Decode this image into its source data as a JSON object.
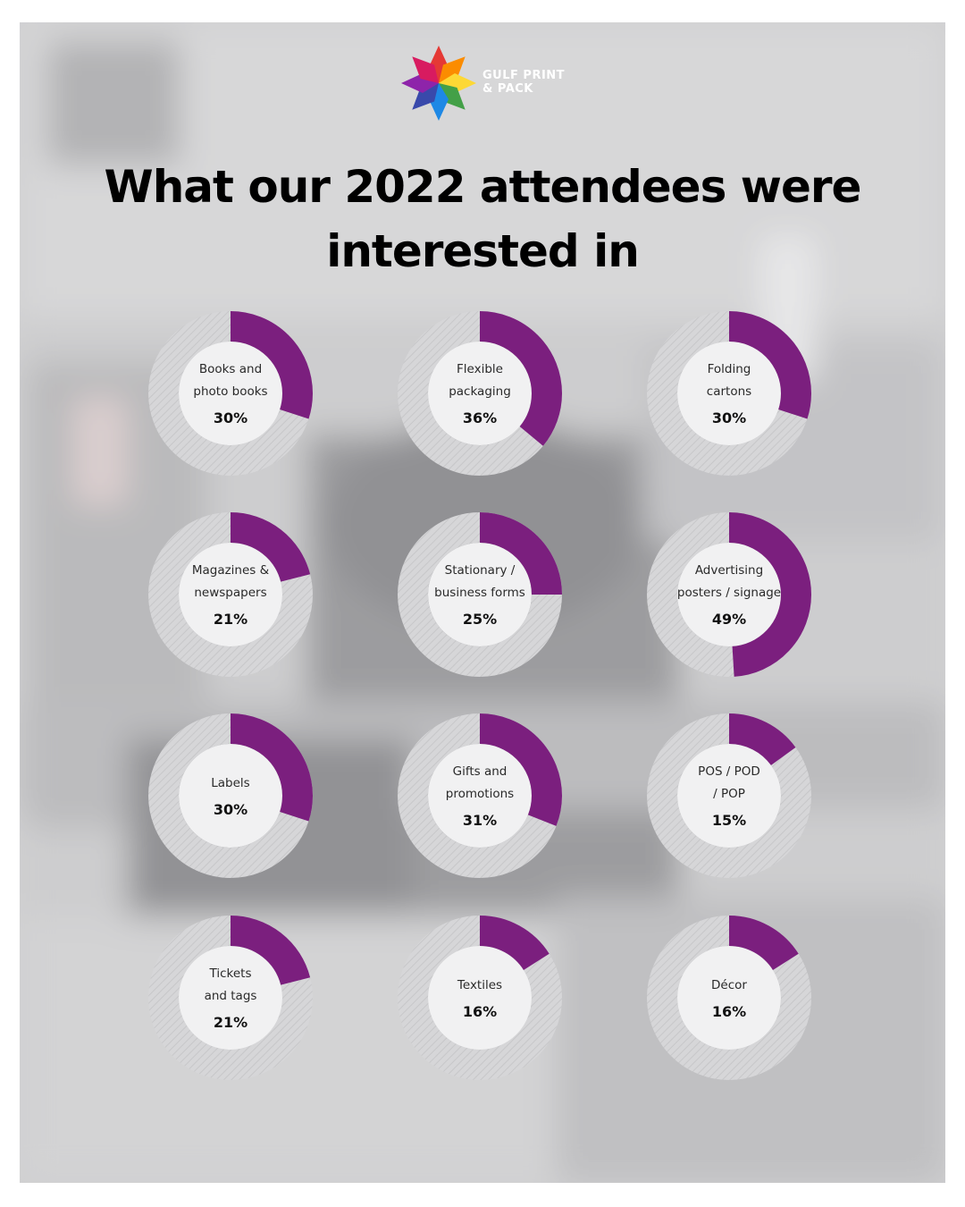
{
  "brand": {
    "name_line1": "GULF PRINT",
    "name_line2": "& PACK",
    "petal_colors": [
      "#e53935",
      "#fb8c00",
      "#fdd835",
      "#43a047",
      "#1e88e5",
      "#3949ab",
      "#8e24aa",
      "#d81b60"
    ]
  },
  "title": {
    "line1": "What our 2022 attendees were",
    "line2": "interested in"
  },
  "colors": {
    "accent": "#7b1f7e",
    "track": "#d4d4d6",
    "inner": "#f1f1f2",
    "background": "#b9b9bb"
  },
  "chart_data": {
    "type": "pie",
    "style": "donut",
    "series": [
      {
        "label": "Books and photo books",
        "lines": [
          "Books and",
          "photo books"
        ],
        "display": "30%",
        "value": 30
      },
      {
        "label": "Flexible packaging",
        "lines": [
          "Flexible",
          "packaging"
        ],
        "display": "36%",
        "value": 36
      },
      {
        "label": "Folding cartons",
        "lines": [
          "Folding",
          "cartons"
        ],
        "display": "30%",
        "value": 30
      },
      {
        "label": "Magazines & newspapers",
        "lines": [
          "Magazines &",
          "newspapers"
        ],
        "display": "21%",
        "value": 21
      },
      {
        "label": "Stationary / business forms",
        "lines": [
          "Stationary /",
          "business forms"
        ],
        "display": "25%",
        "value": 25
      },
      {
        "label": "Advertising posters / signage",
        "lines": [
          "Advertising",
          "posters / signage"
        ],
        "display": "49%",
        "value": 49
      },
      {
        "label": "Labels",
        "lines": [
          "Labels"
        ],
        "display": "30%",
        "value": 30
      },
      {
        "label": "Gifts and promotions",
        "lines": [
          "Gifts and",
          "promotions"
        ],
        "display": "31%",
        "value": 31
      },
      {
        "label": "POS / POD / POP",
        "lines": [
          "POS / POD",
          "/ POP"
        ],
        "display": "15%",
        "value": 15
      },
      {
        "label": "Tickets and tags",
        "lines": [
          "Tickets",
          "and tags"
        ],
        "display": "21%",
        "value": 21
      },
      {
        "label": "Textiles",
        "lines": [
          "Textiles"
        ],
        "display": "16%",
        "value": 16
      },
      {
        "label": "Décor",
        "lines": [
          "Décor"
        ],
        "display": "16%",
        "value": 16
      }
    ]
  }
}
